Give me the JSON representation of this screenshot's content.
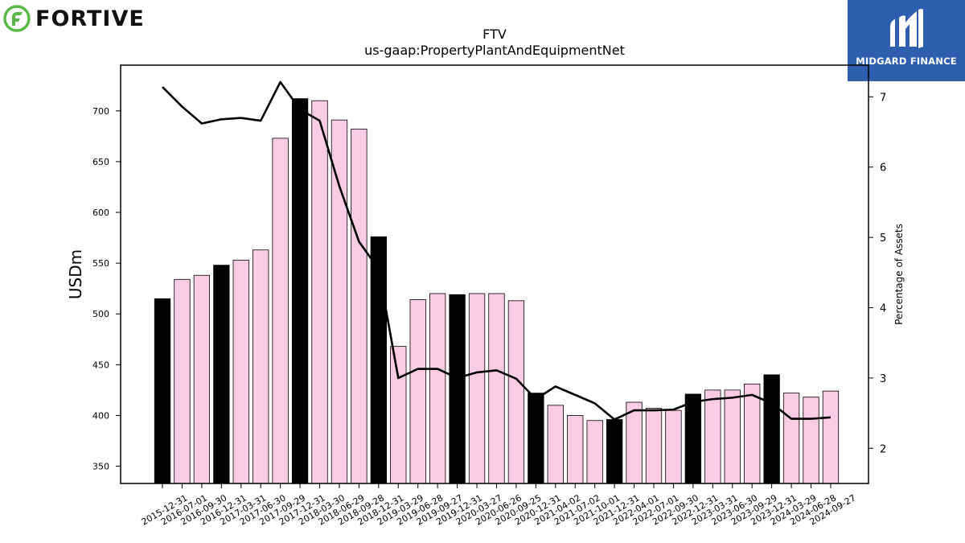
{
  "brand_left": {
    "name": "FORTIVE",
    "icon": "fortive-leaf-icon",
    "color": "#5cb848"
  },
  "brand_right": {
    "name": "MIDGARD FINANCE",
    "icon": "midgard-m-icon",
    "background": "#2d5fae"
  },
  "chart_data": {
    "type": "bar",
    "title": "FTV",
    "subtitle": "us-gaap:PropertyPlantAndEquipmentNet",
    "ylabel": "USDm",
    "y2label": "Percentage of Assets",
    "ylim": [
      333,
      745
    ],
    "y2lim": [
      1.5,
      7.45
    ],
    "yticks": [
      350,
      400,
      450,
      500,
      550,
      600,
      650,
      700
    ],
    "y2ticks": [
      2,
      3,
      4,
      5,
      6,
      7
    ],
    "grid": false,
    "colors": {
      "annual": "#000000",
      "quarterly": "#fccce6",
      "line": "#000000"
    },
    "categories": [
      "2015-12-31",
      "2016-07-01",
      "2016-09-30",
      "2016-12-31",
      "2017-03-31",
      "2017-06-30",
      "2017-09-29",
      "2017-12-31",
      "2018-03-30",
      "2018-06-29",
      "2018-09-28",
      "2018-12-31",
      "2019-03-29",
      "2019-06-28",
      "2019-09-27",
      "2019-12-31",
      "2020-03-27",
      "2020-06-26",
      "2020-09-25",
      "2020-12-31",
      "2021-04-02",
      "2021-07-02",
      "2021-10-01",
      "2021-12-31",
      "2022-04-01",
      "2022-07-01",
      "2022-09-30",
      "2022-12-31",
      "2023-03-31",
      "2023-06-30",
      "2023-09-29",
      "2023-12-31",
      "2024-03-29",
      "2024-06-28",
      "2024-09-27"
    ],
    "series": [
      {
        "type": "bar",
        "axis": "left",
        "values": [
          515,
          534,
          538,
          548,
          553,
          563,
          673,
          712,
          710,
          691,
          682,
          576,
          468,
          514,
          520,
          519,
          520,
          520,
          513,
          422,
          410,
          400,
          395,
          396,
          413,
          407,
          405,
          421,
          425,
          425,
          431,
          440,
          422,
          418,
          424
        ],
        "annual": [
          true,
          false,
          false,
          true,
          false,
          false,
          false,
          true,
          false,
          false,
          false,
          true,
          false,
          false,
          false,
          true,
          false,
          false,
          false,
          true,
          false,
          false,
          false,
          true,
          false,
          false,
          false,
          true,
          false,
          false,
          false,
          true,
          false,
          false,
          false
        ]
      },
      {
        "type": "line",
        "axis": "right",
        "values": [
          7.14,
          6.86,
          6.62,
          6.68,
          6.7,
          6.66,
          7.21,
          6.82,
          6.66,
          5.73,
          4.94,
          4.55,
          3.0,
          3.13,
          3.13,
          3.0,
          3.08,
          3.11,
          2.99,
          2.7,
          2.88,
          2.76,
          2.64,
          2.41,
          2.54,
          2.54,
          2.55,
          2.66,
          2.7,
          2.72,
          2.76,
          2.64,
          2.42,
          2.42,
          2.44
        ]
      }
    ]
  }
}
